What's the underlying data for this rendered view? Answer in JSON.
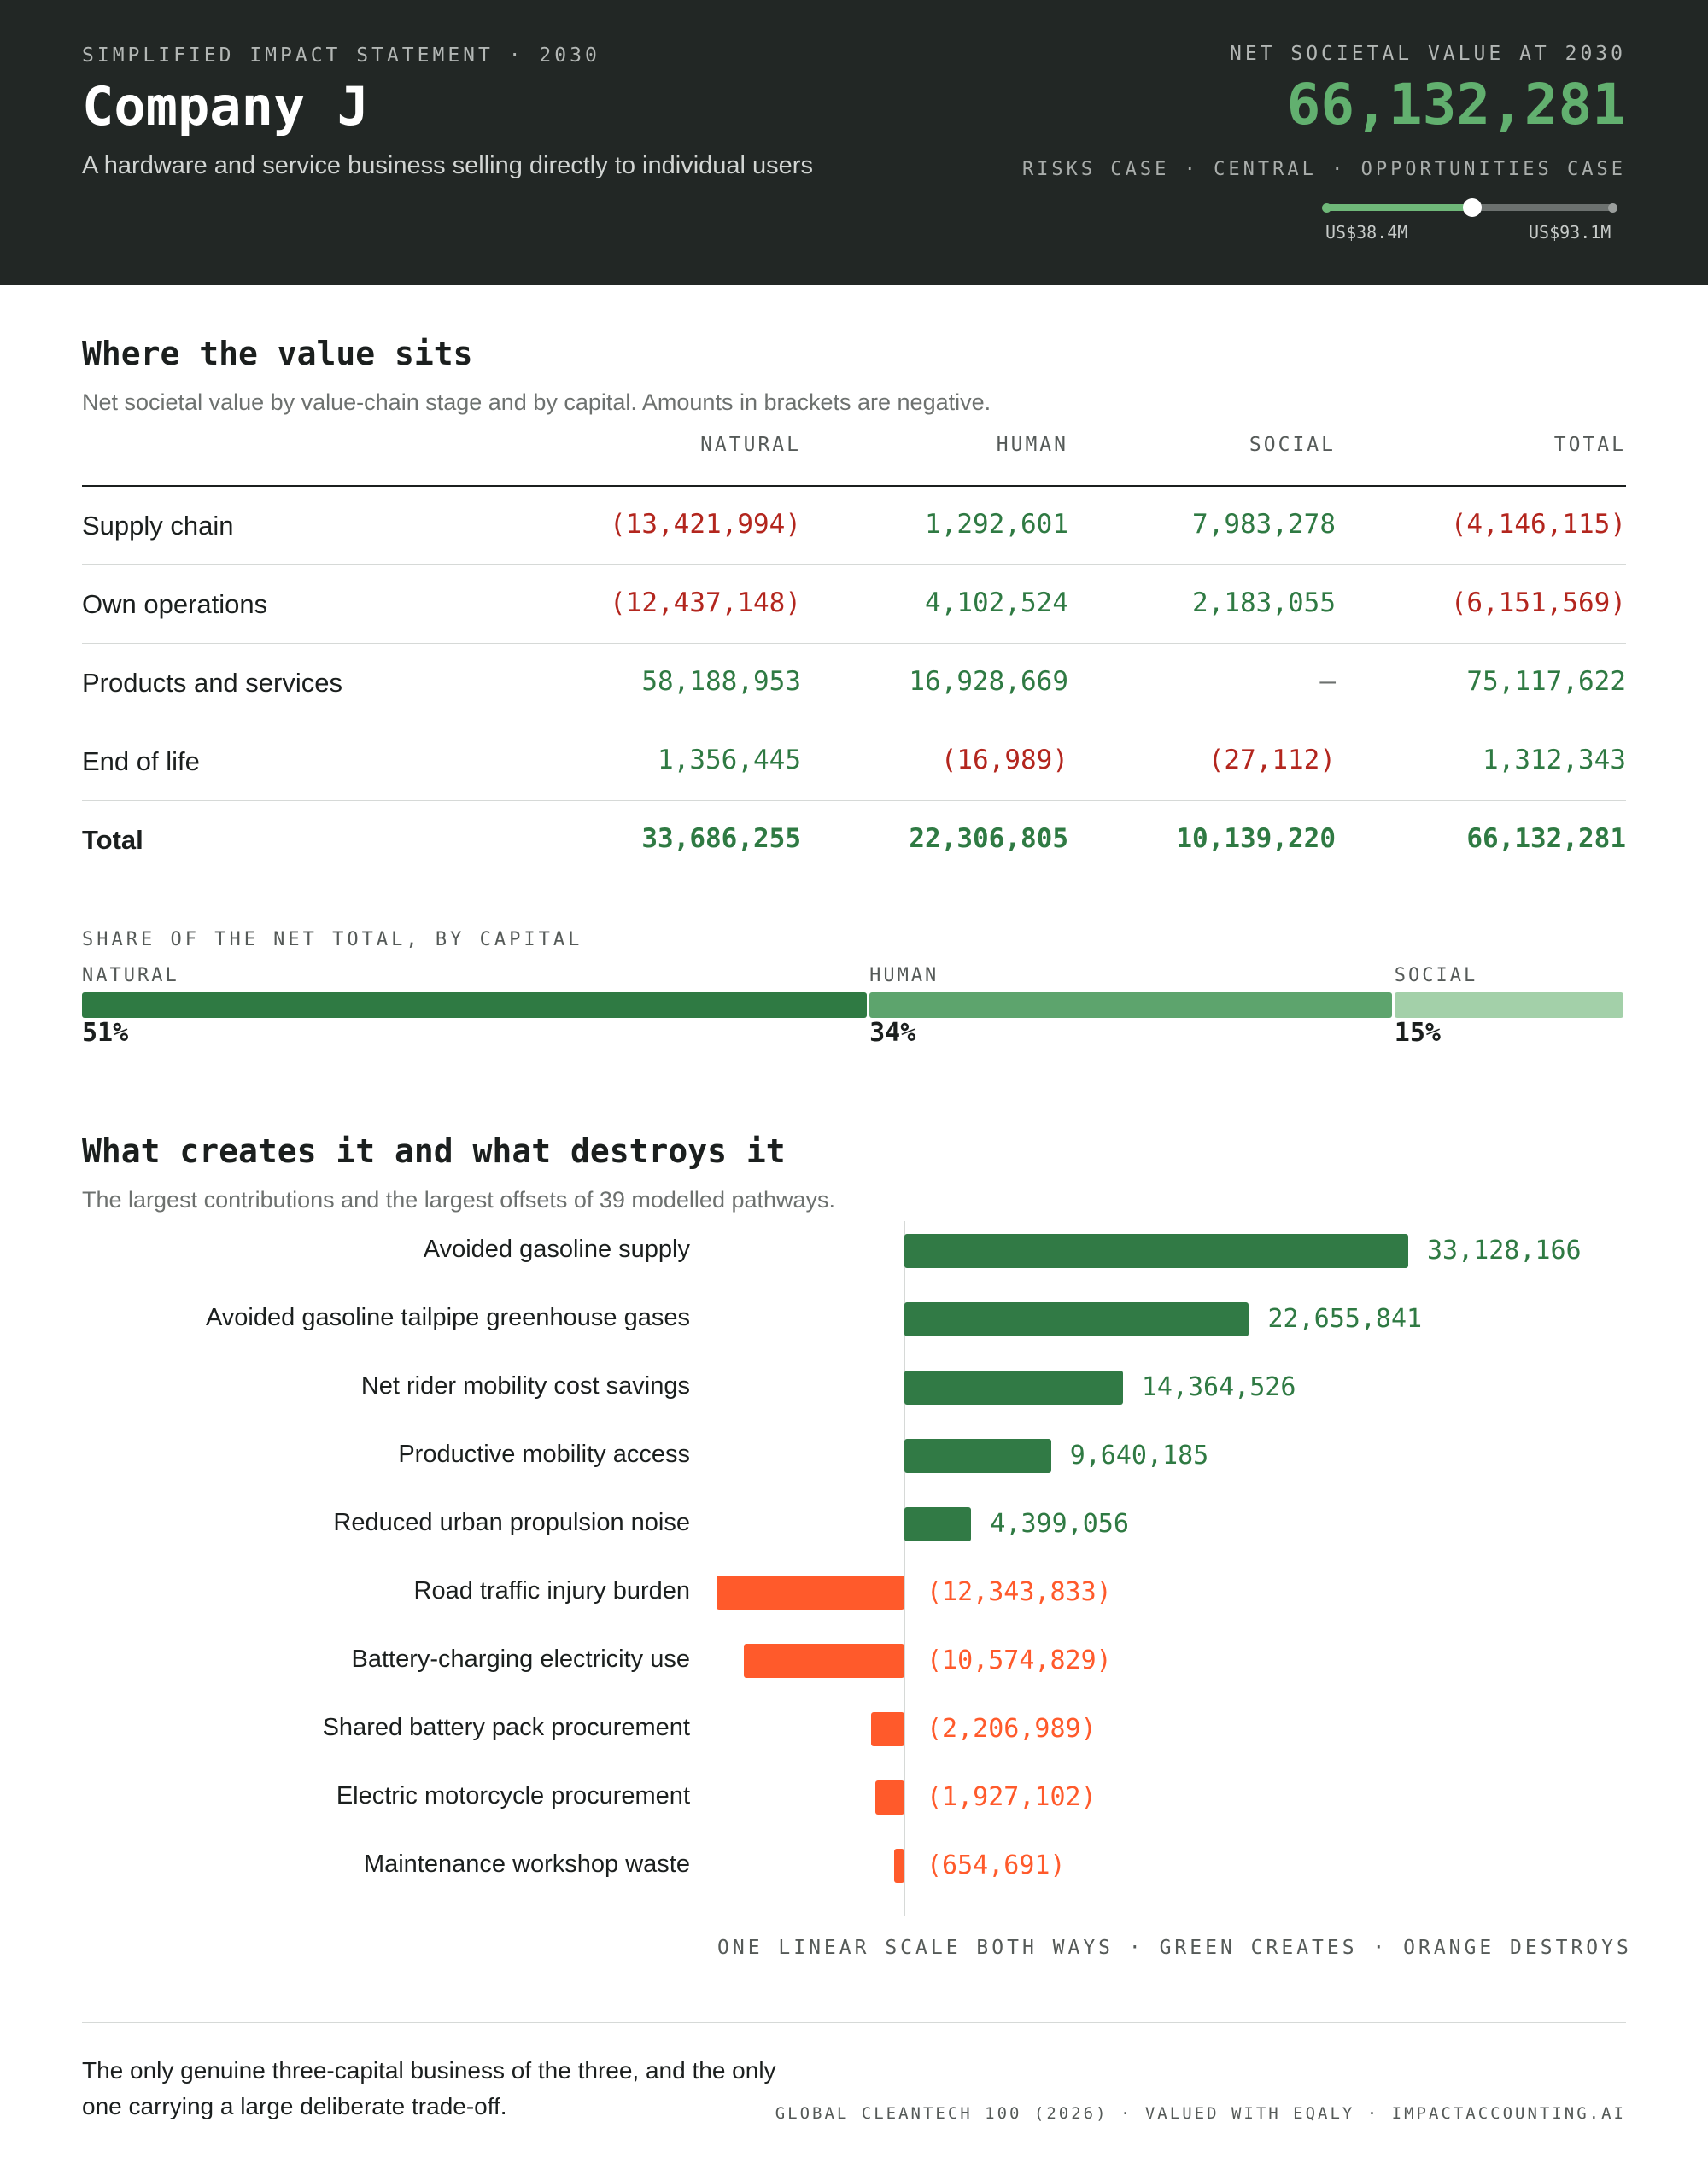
{
  "header": {
    "kicker": "SIMPLIFIED IMPACT STATEMENT · 2030",
    "company": "Company J",
    "description": "A hardware and service business selling directly to individual users",
    "nsv_label": "NET SOCIETAL VALUE AT 2030",
    "nsv_value": "66,132,281",
    "case_labels": "RISKS CASE · CENTRAL · OPPORTUNITIES CASE",
    "range_low": "US$38.4M",
    "range_high": "US$93.1M",
    "range_central_fraction": 0.51
  },
  "table_section": {
    "title": "Where the value sits",
    "subtitle": "Net societal value by value-chain stage and by capital. Amounts in brackets are negative.",
    "columns": [
      "NATURAL",
      "HUMAN",
      "SOCIAL",
      "TOTAL"
    ],
    "rows": [
      {
        "label": "Supply chain",
        "cells": [
          "(13,421,994)",
          "1,292,601",
          "7,983,278",
          "(4,146,115)"
        ],
        "signs": [
          "neg",
          "pos",
          "pos",
          "neg"
        ]
      },
      {
        "label": "Own operations",
        "cells": [
          "(12,437,148)",
          "4,102,524",
          "2,183,055",
          "(6,151,569)"
        ],
        "signs": [
          "neg",
          "pos",
          "pos",
          "neg"
        ]
      },
      {
        "label": "Products and services",
        "cells": [
          "58,188,953",
          "16,928,669",
          "–",
          "75,117,622"
        ],
        "signs": [
          "pos",
          "pos",
          "dash",
          "pos"
        ]
      },
      {
        "label": "End of life",
        "cells": [
          "1,356,445",
          "(16,989)",
          "(27,112)",
          "1,312,343"
        ],
        "signs": [
          "pos",
          "neg",
          "neg",
          "pos"
        ]
      },
      {
        "label": "Total",
        "cells": [
          "33,686,255",
          "22,306,805",
          "10,139,220",
          "66,132,281"
        ],
        "signs": [
          "pos",
          "pos",
          "pos",
          "pos"
        ]
      }
    ]
  },
  "share": {
    "title": "SHARE OF THE NET TOTAL, BY CAPITAL",
    "segments": [
      {
        "label": "NATURAL",
        "pct_text": "51%",
        "value": 51,
        "color": "#2f7a43"
      },
      {
        "label": "HUMAN",
        "pct_text": "34%",
        "value": 34,
        "color": "#5da46d"
      },
      {
        "label": "SOCIAL",
        "pct_text": "15%",
        "value": 15,
        "color": "#a3d0a9"
      }
    ]
  },
  "pathways_section": {
    "title": "What creates it and what destroys it",
    "subtitle": "The largest contributions and the largest offsets of 39 modelled pathways.",
    "scale_note": "ONE LINEAR SCALE BOTH WAYS · GREEN CREATES · ORANGE DESTROYS"
  },
  "chart_data": {
    "type": "bar",
    "orientation": "horizontal-divergent",
    "categories": [
      "Avoided gasoline supply",
      "Avoided gasoline tailpipe greenhouse gases",
      "Net rider mobility cost savings",
      "Productive mobility access",
      "Reduced urban propulsion noise",
      "Road traffic injury burden",
      "Battery-charging electricity use",
      "Shared battery pack procurement",
      "Electric motorcycle procurement",
      "Maintenance workshop waste"
    ],
    "values": [
      33128166,
      22655841,
      14364526,
      9640185,
      4399056,
      -12343833,
      -10574829,
      -2206989,
      -1927102,
      -654691
    ],
    "value_labels": [
      "33,128,166",
      "22,655,841",
      "14,364,526",
      "9,640,185",
      "4,399,056",
      "(12,343,833)",
      "(10,574,829)",
      "(2,206,989)",
      "(1,927,102)",
      "(654,691)"
    ],
    "colors": {
      "positive": "#317a45",
      "negative": "#ff5a2b"
    }
  },
  "footer": {
    "note": "The only genuine three-capital business of the three, and the only one carrying a large deliberate trade-off.",
    "credit": "GLOBAL CLEANTECH 100 (2026) · VALUED WITH EQALY · IMPACTACCOUNTING.AI"
  }
}
